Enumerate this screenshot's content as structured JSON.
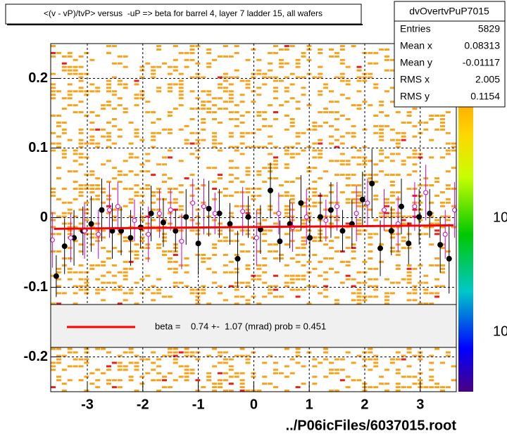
{
  "chart_data": {
    "type": "scatter",
    "title": "<(v - vP)/tvP> versus  -uP => beta for barrel 4, layer 7 ladder 15, all wafers",
    "xlim": [
      -3.66,
      3.65
    ],
    "ylim": [
      -0.25,
      0.25
    ],
    "xticks": [
      -3,
      -2,
      -1,
      0,
      1,
      2,
      3
    ],
    "yticks": [
      -0.2,
      -0.1,
      0,
      0.1,
      0.2
    ],
    "grid": true,
    "series": [
      {
        "color": "#000000",
        "marker": "filled",
        "x": [
          -3.56,
          -3.41,
          -3.24,
          -3.08,
          -2.93,
          -2.74,
          -2.55,
          -2.39,
          -2.22,
          -2.04,
          -1.85,
          -1.63,
          -1.41,
          -1.22,
          -1.0,
          -0.81,
          -0.62,
          -0.43,
          -0.29,
          -0.1,
          0.12,
          0.3,
          0.47,
          0.65,
          0.85,
          1.01,
          1.2,
          1.39,
          1.6,
          1.77,
          1.96,
          2.13,
          2.28,
          2.48,
          2.66,
          2.79,
          2.98,
          3.17,
          3.36,
          3.52
        ],
        "values": [
          -0.084,
          -0.041,
          -0.029,
          -0.019,
          -0.009,
          0.011,
          -0.019,
          -0.019,
          -0.029,
          -0.014,
          0.006,
          -0.007,
          -0.019,
          0.001,
          -0.037,
          0.013,
          0.006,
          -0.009,
          -0.059,
          0.001,
          -0.017,
          0.039,
          -0.034,
          -0.009,
          0.021,
          -0.029,
          0.001,
          0.011,
          -0.019,
          -0.009,
          0.026,
          0.049,
          -0.044,
          -0.019,
          0.016,
          -0.037,
          0.001,
          0.006,
          -0.039,
          -0.059
        ],
        "errors": [
          0.03,
          0.04,
          0.04,
          0.035,
          0.04,
          0.045,
          0.04,
          0.035,
          0.04,
          0.03,
          0.04,
          0.035,
          0.03,
          0.04,
          0.045,
          0.04,
          0.035,
          0.03,
          0.04,
          0.03,
          0.035,
          0.04,
          0.03,
          0.035,
          0.04,
          0.03,
          0.035,
          0.04,
          0.03,
          0.035,
          0.04,
          0.05,
          0.04,
          0.035,
          0.04,
          0.03,
          0.04,
          0.035,
          0.04,
          0.05
        ]
      },
      {
        "color": "#cc00cc",
        "marker": "open",
        "x": [
          -3.63,
          -3.3,
          -3.05,
          -2.8,
          -2.6,
          -2.45,
          -2.15,
          -1.9,
          -1.7,
          -1.5,
          -1.3,
          -1.1,
          -0.9,
          -0.7,
          -0.2,
          0.05,
          0.45,
          0.7,
          0.95,
          1.3,
          1.5,
          1.85,
          2.05,
          2.35,
          2.6,
          2.9,
          3.1,
          3.45,
          3.62
        ],
        "values": [
          -0.032,
          -0.029,
          -0.019,
          -0.024,
          0.011,
          0.016,
          -0.004,
          -0.024,
          0.006,
          0.011,
          -0.034,
          0.021,
          0.016,
          0.006,
          0.009,
          -0.029,
          0.006,
          -0.014,
          0.001,
          -0.004,
          0.016,
          0.006,
          0.021,
          0.011,
          -0.009,
          0.016,
          0.036,
          -0.024,
          0.011
        ],
        "errors": [
          0.04,
          0.035,
          0.04,
          0.035,
          0.04,
          0.035,
          0.03,
          0.04,
          0.035,
          0.03,
          0.04,
          0.035,
          0.04,
          0.03,
          0.035,
          0.04,
          0.03,
          0.035,
          0.04,
          0.03,
          0.035,
          0.04,
          0.035,
          0.03,
          0.04,
          0.035,
          0.04,
          0.035,
          0.04
        ]
      }
    ],
    "fit": {
      "color": "#ff0000",
      "x": [
        -3.6,
        3.6
      ],
      "values": [
        -0.016,
        -0.011
      ]
    },
    "legend": "beta =    0.74 +-  1.07 (mrad) prob = 0.451",
    "stats": {
      "name": "dvOvertvPuP7015",
      "rows": [
        {
          "label": "Entries",
          "value": 5829
        },
        {
          "label": "Mean x",
          "value": 0.08313
        },
        {
          "label": "Mean y",
          "value": -0.01117
        },
        {
          "label": "RMS x",
          "value": 2.005
        },
        {
          "label": "RMS y",
          "value": 0.1154
        }
      ]
    },
    "colorbar_labels": [
      "10",
      "10"
    ],
    "footer": "../P06icFiles/6037015.root"
  }
}
